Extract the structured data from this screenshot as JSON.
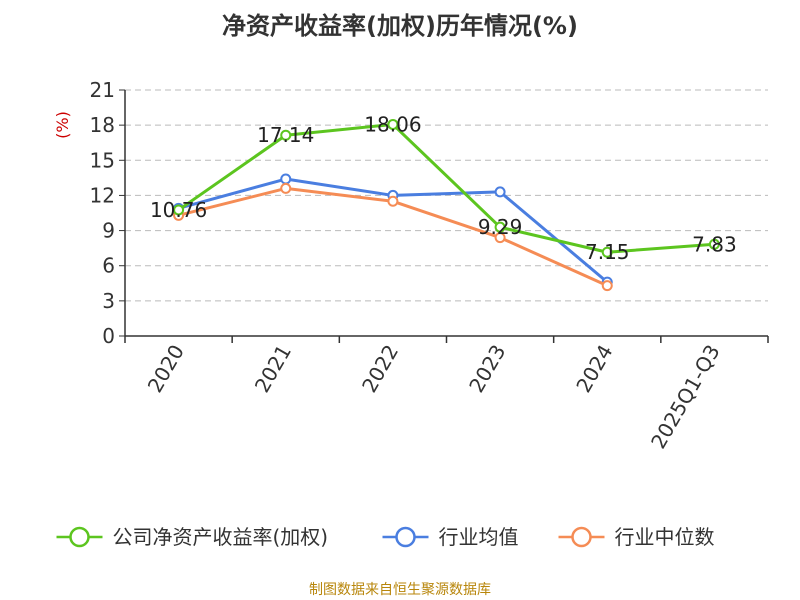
{
  "chart_data": {
    "type": "line",
    "title": "净资产收益率(加权)历年情况(%)",
    "ylabel": "(%)",
    "xlabel": "",
    "categories": [
      "2020",
      "2021",
      "2022",
      "2023",
      "2024",
      "2025Q1-Q3"
    ],
    "yticks": [
      0,
      3,
      6,
      9,
      12,
      15,
      18,
      21
    ],
    "ylim": [
      0,
      21
    ],
    "grid": true,
    "series": [
      {
        "name": "公司净资产收益率(加权)",
        "color": "#5cc51f",
        "values": [
          10.76,
          17.14,
          18.06,
          9.29,
          7.15,
          7.83
        ],
        "labels": [
          "10.76",
          "17.14",
          "18.06",
          "9.29",
          "7.15",
          "7.83"
        ]
      },
      {
        "name": "行业均值",
        "color": "#4a7ee0",
        "values": [
          10.9,
          13.4,
          12.0,
          12.3,
          4.6,
          null
        ]
      },
      {
        "name": "行业中位数",
        "color": "#f58c55",
        "values": [
          10.3,
          12.6,
          11.5,
          8.4,
          4.3,
          null
        ]
      }
    ],
    "source": "制图数据来自恒生聚源数据库"
  }
}
